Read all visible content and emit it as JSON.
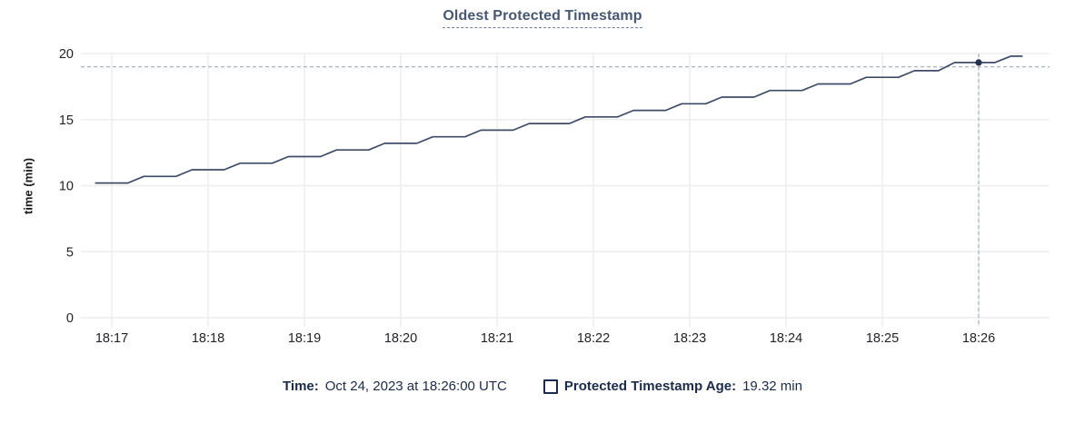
{
  "header": {
    "title": "Oldest Protected Timestamp"
  },
  "legend": {
    "time_label": "Time:",
    "time_value": "Oct 24, 2023 at 18:26:00 UTC",
    "series_label": "Protected Timestamp Age:",
    "series_value": "19.32 min"
  },
  "colors": {
    "title": "#475872",
    "title_underline": "#6c82a0",
    "legend_text": "#1b2b49",
    "axis_label": "#1c1c1c",
    "tick_text": "#212327",
    "grid": "#ededed",
    "line": "#3e4c68",
    "dot": "#24334e",
    "crosshair": "#a9b8c2"
  },
  "chart_data": {
    "type": "line",
    "title": "Oldest Protected Timestamp",
    "xlabel": "",
    "ylabel": "time (min)",
    "ylim": [
      0,
      20
    ],
    "yticks": [
      0,
      5,
      10,
      15,
      20
    ],
    "xticks": [
      "18:17",
      "18:18",
      "18:19",
      "18:20",
      "18:21",
      "18:22",
      "18:23",
      "18:24",
      "18:25",
      "18:26"
    ],
    "grid": true,
    "legend_position": "bottom",
    "line_style": "staircase",
    "series": [
      {
        "name": "Protected Timestamp Age",
        "unit": "min",
        "points": [
          [
            "18:16:50",
            10.2
          ],
          [
            "18:17:10",
            10.2
          ],
          [
            "18:17:20",
            10.7
          ],
          [
            "18:17:40",
            10.7
          ],
          [
            "18:17:50",
            11.2
          ],
          [
            "18:18:10",
            11.2
          ],
          [
            "18:18:20",
            11.7
          ],
          [
            "18:18:40",
            11.7
          ],
          [
            "18:18:50",
            12.2
          ],
          [
            "18:19:10",
            12.2
          ],
          [
            "18:19:20",
            12.7
          ],
          [
            "18:19:40",
            12.7
          ],
          [
            "18:19:50",
            13.2
          ],
          [
            "18:20:10",
            13.2
          ],
          [
            "18:20:20",
            13.7
          ],
          [
            "18:20:40",
            13.7
          ],
          [
            "18:20:50",
            14.2
          ],
          [
            "18:21:10",
            14.2
          ],
          [
            "18:21:20",
            14.7
          ],
          [
            "18:21:45",
            14.7
          ],
          [
            "18:21:55",
            15.2
          ],
          [
            "18:22:15",
            15.2
          ],
          [
            "18:22:25",
            15.7
          ],
          [
            "18:22:45",
            15.7
          ],
          [
            "18:22:55",
            16.2
          ],
          [
            "18:23:10",
            16.2
          ],
          [
            "18:23:20",
            16.7
          ],
          [
            "18:23:40",
            16.7
          ],
          [
            "18:23:50",
            17.2
          ],
          [
            "18:24:10",
            17.2
          ],
          [
            "18:24:20",
            17.7
          ],
          [
            "18:24:40",
            17.7
          ],
          [
            "18:24:50",
            18.2
          ],
          [
            "18:25:10",
            18.2
          ],
          [
            "18:25:20",
            18.7
          ],
          [
            "18:25:35",
            18.7
          ],
          [
            "18:25:45",
            19.32
          ],
          [
            "18:26:10",
            19.32
          ],
          [
            "18:26:20",
            19.8
          ],
          [
            "18:26:27",
            19.8
          ]
        ]
      }
    ],
    "hover": {
      "time": "18:26:00",
      "value_min": 19.32,
      "crosshair_value": 19.0
    }
  }
}
